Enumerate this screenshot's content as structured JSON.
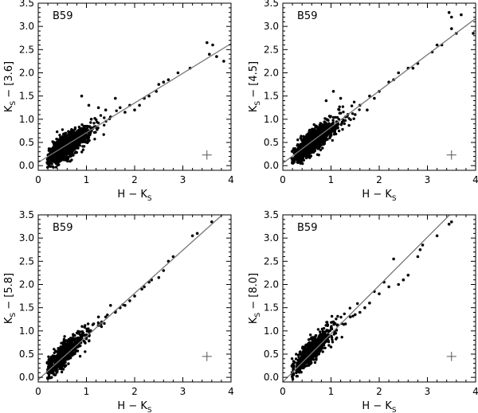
{
  "chart_data": [
    {
      "type": "scatter",
      "panel_label": "B59",
      "xlabel": "H − K",
      "xlabel_sub": "S",
      "ylabel_pre": "K",
      "ylabel_sub": "S",
      "ylabel_post": " − [3.6]",
      "xlim": [
        0,
        4
      ],
      "ylim": [
        -0.1,
        3.5
      ],
      "xticks": [
        "0",
        "1",
        "2",
        "3",
        "4"
      ],
      "yticks": [
        "0.0",
        "0.5",
        "1.0",
        "1.5",
        "2.0",
        "2.5",
        "3.0",
        "3.5"
      ],
      "fit_line": {
        "slope": 0.64,
        "intercept": 0.07
      },
      "error_bar": {
        "x": 3.5,
        "y": 0.23,
        "dx": 0.1,
        "dy": 0.1
      },
      "bulk_cluster": {
        "x_center": 0.55,
        "y_center": 0.4,
        "n_points": 1200
      },
      "outliers": [
        [
          3.5,
          2.65
        ],
        [
          3.62,
          2.6
        ],
        [
          3.7,
          2.35
        ],
        [
          3.55,
          2.4
        ],
        [
          3.85,
          2.25
        ],
        [
          2.9,
          2.0
        ],
        [
          2.7,
          1.85
        ],
        [
          2.5,
          1.75
        ],
        [
          2.3,
          1.5
        ],
        [
          2.1,
          1.3
        ],
        [
          1.9,
          1.3
        ],
        [
          1.6,
          1.45
        ],
        [
          1.8,
          1.15
        ],
        [
          2.6,
          1.8
        ],
        [
          3.15,
          2.1
        ],
        [
          1.25,
          1.25
        ],
        [
          1.4,
          1.2
        ],
        [
          1.05,
          1.3
        ],
        [
          0.9,
          1.5
        ],
        [
          1.1,
          1.0
        ],
        [
          2.2,
          1.45
        ],
        [
          2.45,
          1.6
        ],
        [
          1.7,
          1.25
        ],
        [
          1.5,
          1.05
        ],
        [
          2.0,
          1.2
        ]
      ]
    },
    {
      "type": "scatter",
      "panel_label": "B59",
      "xlabel": "H − K",
      "xlabel_sub": "S",
      "ylabel_pre": "K",
      "ylabel_sub": "S",
      "ylabel_post": " − [4.5]",
      "xlim": [
        0,
        4
      ],
      "ylim": [
        -0.1,
        3.5
      ],
      "xticks": [
        "0",
        "1",
        "2",
        "3",
        "4"
      ],
      "yticks": [
        "0.0",
        "0.5",
        "1.0",
        "1.5",
        "2.0",
        "2.5",
        "3.0",
        "3.5"
      ],
      "fit_line": {
        "slope": 0.78,
        "intercept": 0.05
      },
      "error_bar": {
        "x": 3.5,
        "y": 0.23,
        "dx": 0.1,
        "dy": 0.1
      },
      "bulk_cluster": {
        "x_center": 0.58,
        "y_center": 0.48,
        "n_points": 1200
      },
      "outliers": [
        [
          3.45,
          3.3
        ],
        [
          3.5,
          3.2
        ],
        [
          3.7,
          3.25
        ],
        [
          3.5,
          2.95
        ],
        [
          3.6,
          2.85
        ],
        [
          3.95,
          2.85
        ],
        [
          3.3,
          2.6
        ],
        [
          3.1,
          2.45
        ],
        [
          2.8,
          2.2
        ],
        [
          2.6,
          2.1
        ],
        [
          2.4,
          2.0
        ],
        [
          2.2,
          1.8
        ],
        [
          2.0,
          1.6
        ],
        [
          1.8,
          1.5
        ],
        [
          1.6,
          1.3
        ],
        [
          1.5,
          1.1
        ],
        [
          1.3,
          1.05
        ],
        [
          0.9,
          1.4
        ],
        [
          1.05,
          1.6
        ],
        [
          1.2,
          1.45
        ],
        [
          2.3,
          1.85
        ],
        [
          2.7,
          2.1
        ],
        [
          1.9,
          1.45
        ],
        [
          1.75,
          1.2
        ],
        [
          3.2,
          2.6
        ]
      ]
    },
    {
      "type": "scatter",
      "panel_label": "B59",
      "xlabel": "H − K",
      "xlabel_sub": "S",
      "ylabel_pre": "K",
      "ylabel_sub": "S",
      "ylabel_post": " − [5.8]",
      "xlim": [
        0,
        4
      ],
      "ylim": [
        -0.1,
        3.5
      ],
      "xticks": [
        "0",
        "1",
        "2",
        "3",
        "4"
      ],
      "yticks": [
        "0.0",
        "0.5",
        "1.0",
        "1.5",
        "2.0",
        "2.5",
        "3.0",
        "3.5"
      ],
      "fit_line": {
        "slope": 0.93,
        "intercept": -0.05
      },
      "error_bar": {
        "x": 3.5,
        "y": 0.45,
        "dx": 0.1,
        "dy": 0.1
      },
      "bulk_cluster": {
        "x_center": 0.5,
        "y_center": 0.45,
        "n_points": 650
      },
      "outliers": [
        [
          3.6,
          3.35
        ],
        [
          3.3,
          3.1
        ],
        [
          3.2,
          3.05
        ],
        [
          2.8,
          2.6
        ],
        [
          2.7,
          2.5
        ],
        [
          2.5,
          2.15
        ],
        [
          2.35,
          2.1
        ],
        [
          2.3,
          2.05
        ],
        [
          2.2,
          1.95
        ],
        [
          2.0,
          1.75
        ],
        [
          1.9,
          1.65
        ],
        [
          1.8,
          1.55
        ],
        [
          1.6,
          1.4
        ],
        [
          1.5,
          1.55
        ],
        [
          1.4,
          1.3
        ],
        [
          1.3,
          1.15
        ],
        [
          2.15,
          1.9
        ],
        [
          2.6,
          2.3
        ],
        [
          1.7,
          1.5
        ],
        [
          1.25,
          1.3
        ]
      ]
    },
    {
      "type": "scatter",
      "panel_label": "B59",
      "xlabel": "H − K",
      "xlabel_sub": "S",
      "ylabel_pre": "K",
      "ylabel_sub": "S",
      "ylabel_post": " − [8.0]",
      "xlim": [
        0,
        4
      ],
      "ylim": [
        -0.1,
        3.5
      ],
      "xticks": [
        "0",
        "1",
        "2",
        "3",
        "4"
      ],
      "yticks": [
        "0.0",
        "0.5",
        "1.0",
        "1.5",
        "2.0",
        "2.5",
        "3.0",
        "3.5"
      ],
      "fit_line": {
        "slope": 1.04,
        "intercept": -0.1
      },
      "error_bar": {
        "x": 3.5,
        "y": 0.45,
        "dx": 0.1,
        "dy": 0.1
      },
      "bulk_cluster": {
        "x_center": 0.55,
        "y_center": 0.52,
        "n_points": 650
      },
      "outliers": [
        [
          3.5,
          3.35
        ],
        [
          3.45,
          3.3
        ],
        [
          3.2,
          3.05
        ],
        [
          2.9,
          2.85
        ],
        [
          2.85,
          2.75
        ],
        [
          2.8,
          2.6
        ],
        [
          2.3,
          2.55
        ],
        [
          2.6,
          2.2
        ],
        [
          2.5,
          2.1
        ],
        [
          2.4,
          2.0
        ],
        [
          2.0,
          1.8
        ],
        [
          1.9,
          1.85
        ],
        [
          1.8,
          1.6
        ],
        [
          1.6,
          1.4
        ],
        [
          1.5,
          1.35
        ],
        [
          1.4,
          1.3
        ],
        [
          1.3,
          1.15
        ],
        [
          2.1,
          2.05
        ],
        [
          2.2,
          1.95
        ],
        [
          1.7,
          1.5
        ]
      ]
    }
  ]
}
